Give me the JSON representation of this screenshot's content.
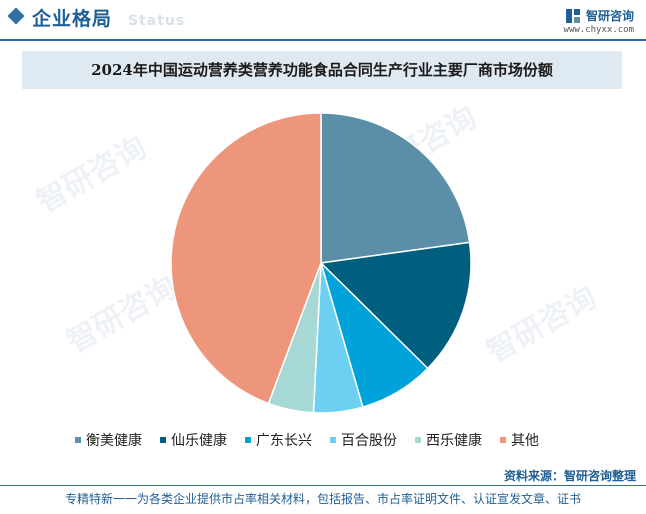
{
  "header": {
    "title": "企业格局",
    "ghost_text": "Status"
  },
  "brand": {
    "name": "智研咨询",
    "url": "www.chyxx.com",
    "logo_icon": "brand-logo-icon"
  },
  "watermark_text": "智研咨询",
  "chart_data": {
    "type": "pie",
    "title": "2024年中国运动营养类营养功能食品合同生产行业主要厂商市场份额",
    "categories": [
      "衡美健康",
      "仙乐健康",
      "广东长兴",
      "百合股份",
      "西乐健康",
      "其他"
    ],
    "values": [
      22.8,
      14.6,
      8.1,
      5.3,
      4.9,
      44.3
    ],
    "colors": [
      "#5b8fa8",
      "#005f7f",
      "#00a3d9",
      "#6cd0f2",
      "#a6d9d5",
      "#ee967b"
    ],
    "legend_position": "bottom"
  },
  "source": "资料来源：智研咨询整理",
  "footer": "专精特新一一为各类企业提供市占率相关材料，包括报告、市占率证明文件、认证宣发文章、证书"
}
